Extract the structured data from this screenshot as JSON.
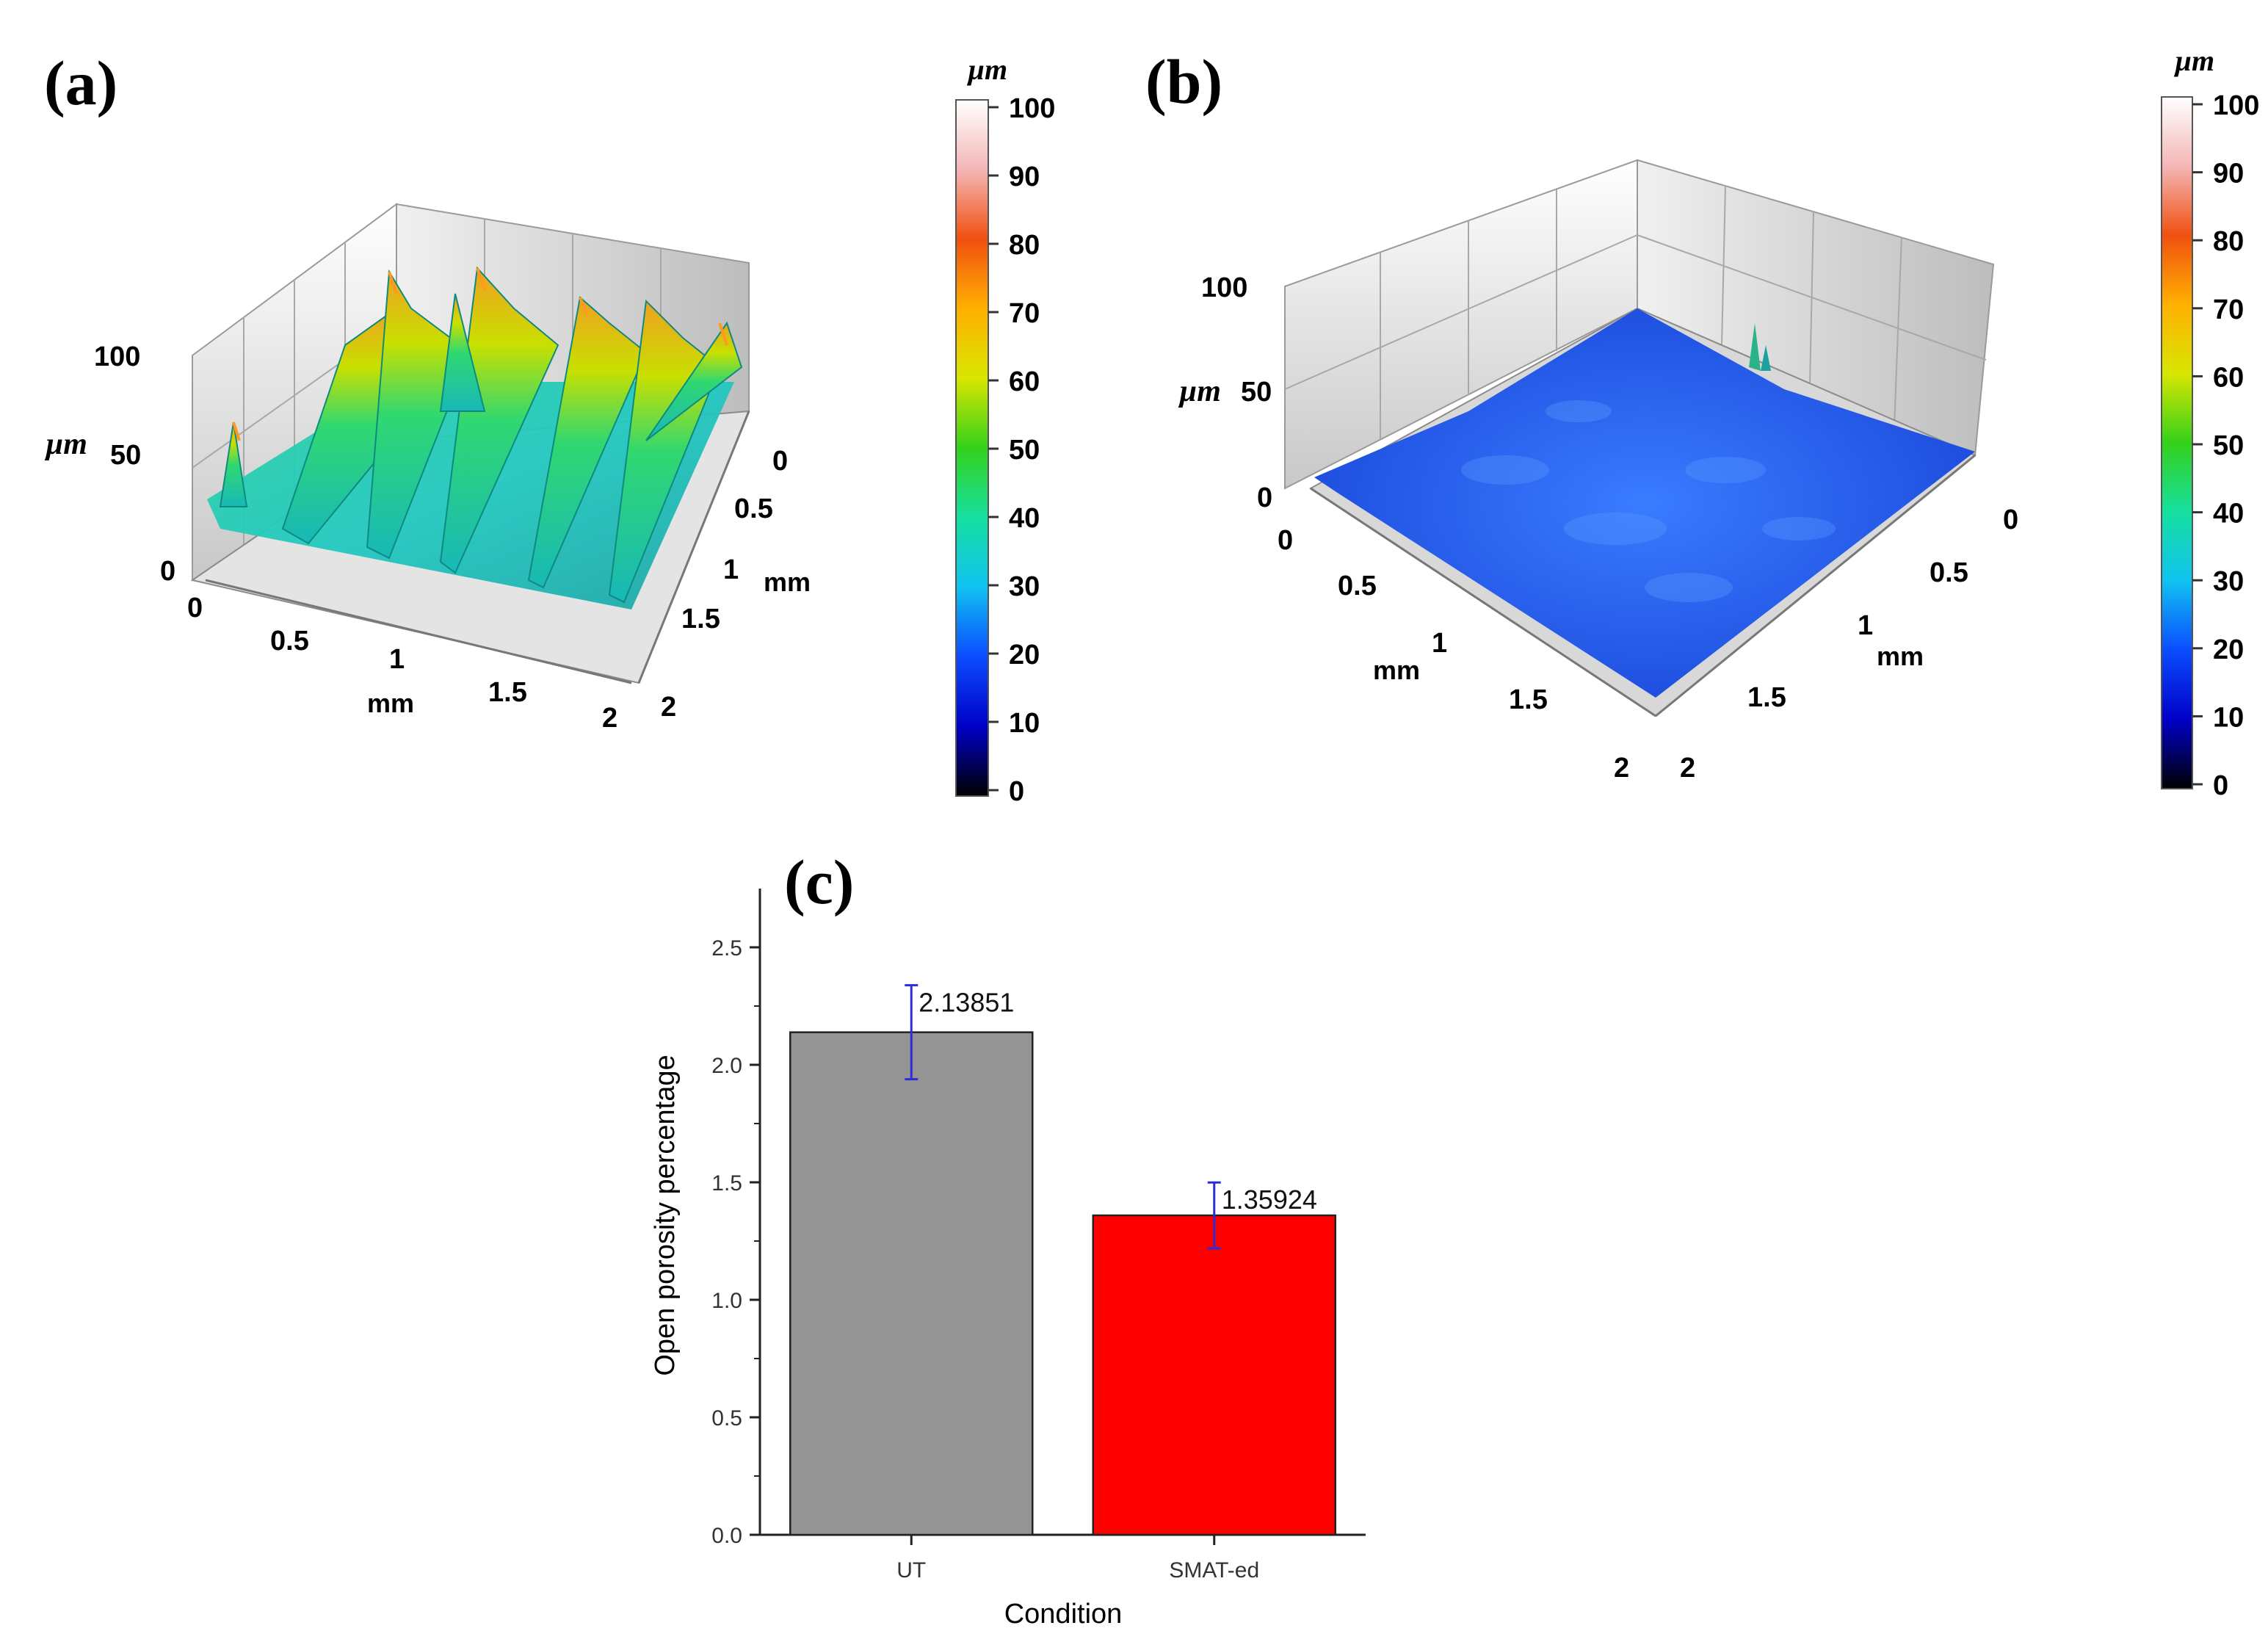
{
  "panels": {
    "a": {
      "label": "(a)",
      "z_unit": "µm",
      "z_ticks": [
        "0",
        "50",
        "100"
      ],
      "x_unit": "mm",
      "x_ticks": [
        "0",
        "0.5",
        "1",
        "1.5",
        "2"
      ],
      "y_unit": "mm",
      "y_ticks": [
        "0",
        "0.5",
        "1",
        "1.5",
        "2"
      ],
      "colorbar": {
        "unit": "µm",
        "ticks": [
          "0",
          "10",
          "20",
          "30",
          "40",
          "50",
          "60",
          "70",
          "80",
          "90",
          "100"
        ],
        "min": 0,
        "max": 100
      }
    },
    "b": {
      "label": "(b)",
      "z_unit": "µm",
      "z_ticks": [
        "0",
        "50",
        "100"
      ],
      "x_unit": "mm",
      "x_ticks": [
        "0",
        "0.5",
        "1",
        "1.5",
        "2"
      ],
      "y_unit": "mm",
      "y_ticks": [
        "0",
        "0.5",
        "1",
        "1.5",
        "2"
      ],
      "colorbar": {
        "unit": "µm",
        "ticks": [
          "0",
          "10",
          "20",
          "30",
          "40",
          "50",
          "60",
          "70",
          "80",
          "90",
          "100"
        ],
        "min": 0,
        "max": 100
      }
    }
  },
  "colors": {
    "ut_bar": "#949494",
    "smat_bar": "#ff0000",
    "error_bar": "#2d2dd8",
    "surface_a_base": "#2fc9a0",
    "surface_b_base": "#1f4fe0"
  },
  "chart_data": {
    "type": "bar",
    "panel_label": "(c)",
    "categories": [
      "UT",
      "SMAT-ed"
    ],
    "values": [
      2.13851,
      1.35924
    ],
    "value_labels": [
      "2.13851",
      "1.35924"
    ],
    "errors": [
      0.2,
      0.14
    ],
    "xlabel": "Condition",
    "ylabel": "Open porosity percentage",
    "ylim": [
      0,
      2.75
    ],
    "yticks": [
      "0.0",
      "0.5",
      "1.0",
      "1.5",
      "2.0",
      "2.5"
    ],
    "legend": "none",
    "grid": false
  }
}
